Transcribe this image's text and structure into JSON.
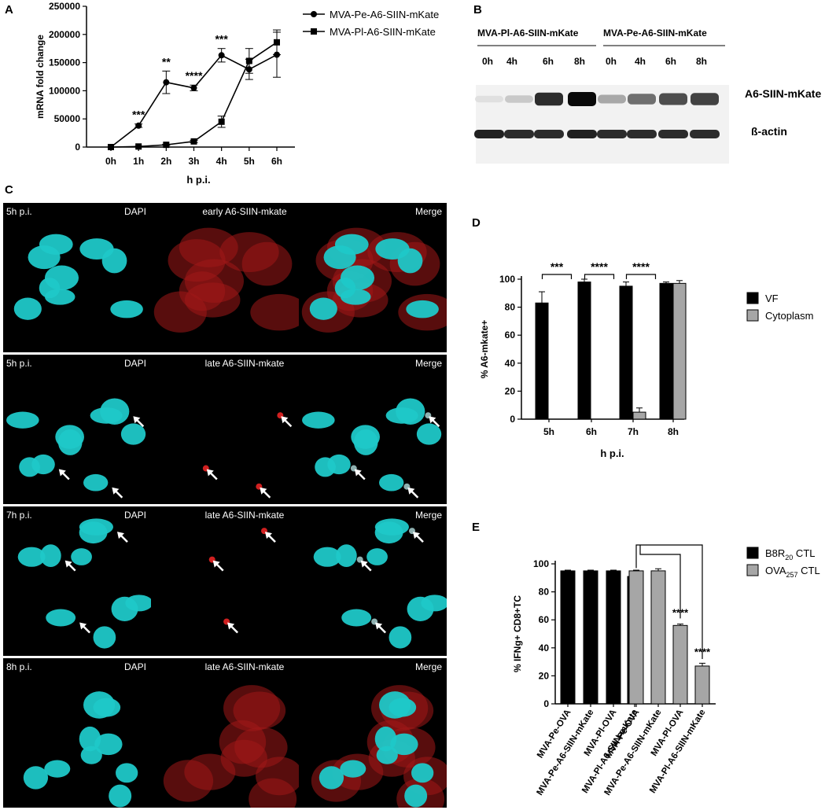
{
  "panel_letters": {
    "a": "A",
    "b": "B",
    "c": "C",
    "d": "D",
    "e": "E"
  },
  "chart_data": [
    {
      "panel": "A",
      "type": "line",
      "xlabel": "h p.i.",
      "ylabel": "mRNA fold change",
      "categories": [
        "0h",
        "1h",
        "2h",
        "3h",
        "4h",
        "5h",
        "6h"
      ],
      "ylim": [
        0,
        250000
      ],
      "yticks": [
        "0",
        "50000",
        "100000",
        "150000",
        "200000",
        "250000"
      ],
      "series": [
        {
          "name": "MVA-Pe-A6-SIIN-mKate",
          "marker": "circle",
          "values": [
            0,
            38000,
            115000,
            105000,
            163000,
            138000,
            164000
          ],
          "errors": [
            0,
            3000,
            20000,
            5000,
            12000,
            18000,
            40000
          ]
        },
        {
          "name": "MVA-Pl-A6-SIIN-mKate",
          "marker": "square",
          "values": [
            0,
            1000,
            4000,
            10000,
            45000,
            153000,
            186000
          ],
          "errors": [
            0,
            500,
            1000,
            2000,
            10000,
            22000,
            22000
          ]
        }
      ],
      "annotations": [
        "***",
        "**",
        "****",
        "***"
      ],
      "annotation_categories": [
        "1h",
        "2h",
        "3h",
        "4h"
      ]
    },
    {
      "panel": "D",
      "type": "bar",
      "xlabel": "h p.i.",
      "ylabel": "% A6-mkate+",
      "categories": [
        "5h",
        "6h",
        "7h",
        "8h"
      ],
      "ylim": [
        0,
        100
      ],
      "yticks": [
        "0",
        "20",
        "40",
        "60",
        "80",
        "100"
      ],
      "series": [
        {
          "name": "VF",
          "color": "#000000",
          "values": [
            83,
            98,
            95,
            97
          ],
          "errors": [
            8,
            2,
            3,
            1
          ]
        },
        {
          "name": "Cytoplasm",
          "color": "#a6a6a6",
          "values": [
            0,
            0,
            5,
            97
          ],
          "errors": [
            0,
            0,
            3,
            2
          ]
        }
      ],
      "significance": [
        "***",
        "****",
        "****"
      ]
    },
    {
      "panel": "E",
      "type": "bar",
      "ylabel": "% IFNg+ CD8+TC",
      "ylim": [
        0,
        100
      ],
      "yticks": [
        "0",
        "20",
        "40",
        "60",
        "80",
        "100"
      ],
      "series": [
        {
          "name": "B8R20 CTL",
          "color": "#000000",
          "categories": [
            "MVA-Pe-OVA",
            "MVA-Pe-A6-SIIN-mKate",
            "MVA-Pl-OVA",
            "MVA-Pl-A6-SIIN-mKate"
          ],
          "values": [
            95,
            95,
            95,
            91
          ],
          "errors": [
            0.5,
            0.5,
            0.5,
            0.8
          ]
        },
        {
          "name": "OVA257 CTL",
          "color": "#a6a6a6",
          "categories": [
            "MVA-Pe-OVA",
            "MVA-Pe-A6-SIIN-mKate",
            "MVA-Pl-OVA",
            "MVA-Pl-A6-SIIN-mKate"
          ],
          "values": [
            95,
            95,
            56,
            27
          ],
          "errors": [
            0.5,
            1.5,
            1,
            2
          ]
        }
      ],
      "legend": [
        {
          "main": "B8R",
          "sub": "20",
          "tail": " CTL"
        },
        {
          "main": "OVA",
          "sub": "257",
          "tail": " CTL"
        }
      ],
      "significance": [
        "****",
        "****"
      ]
    }
  ],
  "western_blot": {
    "groups": [
      "MVA-Pl-A6-SIIN-mKate",
      "MVA-Pe-A6-SIIN-mKate"
    ],
    "lanes": [
      "0h",
      "4h",
      "6h",
      "8h",
      "0h",
      "4h",
      "6h",
      "8h"
    ],
    "bands": [
      "A6-SIIN-mKate",
      "ß-actin"
    ],
    "target_intensity": [
      0.05,
      0.15,
      0.85,
      1.0,
      0.3,
      0.55,
      0.7,
      0.75
    ],
    "actin_intensity": [
      0.9,
      0.85,
      0.85,
      0.9,
      0.85,
      0.85,
      0.85,
      0.85
    ]
  },
  "microscopy": {
    "rows": [
      {
        "time": "5h p.i.",
        "channels": [
          "DAPI",
          "early A6-SIIN-mkate",
          "Merge"
        ]
      },
      {
        "time": "5h p.i.",
        "channels": [
          "DAPI",
          "late A6-SIIN-mkate",
          "Merge"
        ]
      },
      {
        "time": "7h p.i.",
        "channels": [
          "DAPI",
          "late A6-SIIN-mkate",
          "Merge"
        ]
      },
      {
        "time": "8h p.i.",
        "channels": [
          "DAPI",
          "late A6-SIIN-mkate",
          "Merge"
        ]
      }
    ],
    "colors": {
      "dapi": "#1fc8c8",
      "mkate": "#a01818",
      "background": "#000000"
    }
  }
}
